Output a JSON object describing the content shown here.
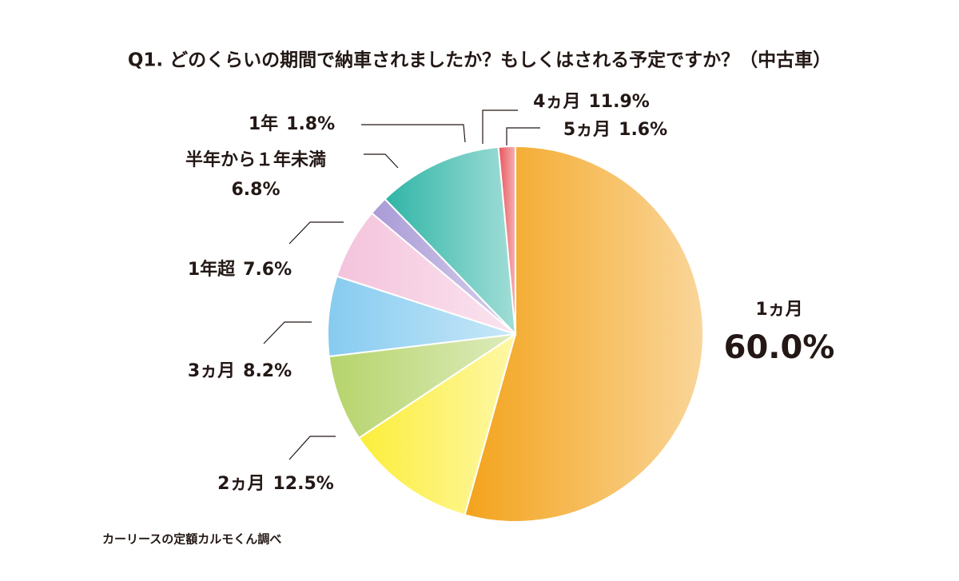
{
  "chart_data": {
    "type": "pie",
    "title": "Q1. どのくらいの期間で納車されましたか？もしくはされる予定ですか？（中古車）",
    "categories": [
      "1ヵ月",
      "2ヵ月",
      "3ヵ月",
      "1年超",
      "半年から１年未満",
      "1年",
      "4ヵ月",
      "5ヵ月"
    ],
    "values": [
      60.0,
      12.5,
      8.2,
      7.6,
      6.8,
      1.8,
      11.9,
      1.6
    ],
    "value_labels": [
      "60.0%",
      "12.5%",
      "8.2%",
      "7.6%",
      "6.8%",
      "1.8%",
      "11.9%",
      "1.6%"
    ],
    "colors": [
      "#f3a31c",
      "#fcee3a",
      "#b5d46b",
      "#86cbf0",
      "#f4c3dc",
      "#a99ad6",
      "#2fb5a6",
      "#e8545a"
    ],
    "source": "カーリースの定額カルモくん調べ"
  }
}
